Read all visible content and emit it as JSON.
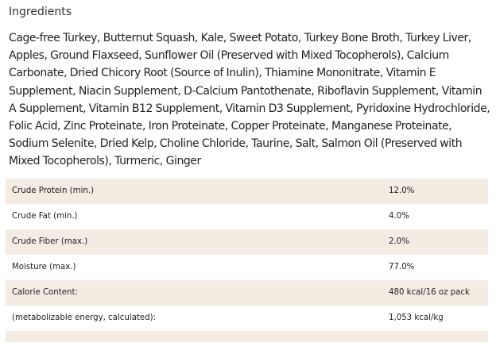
{
  "ingredients": {
    "heading": "Ingredients",
    "text": "Cage-free Turkey, Butternut Squash, Kale, Sweet Potato, Turkey Bone Broth, Turkey Liver, Apples, Ground Flaxseed, Sunflower Oil (Preserved with Mixed Tocopherols), Calcium Carbonate, Dried Chicory Root (Source of Inulin), Thiamine Mononitrate, Vitamin E Supplement, Niacin Supplement, D-Calcium Pantothenate, Riboflavin Supplement, Vitamin A Supplement, Vitamin B12 Supplement, Vitamin D3 Supplement, Pyridoxine Hydrochloride, Folic Acid, Zinc Proteinate, Iron Proteinate, Copper Proteinate, Manganese Proteinate, Sodium Selenite, Dried Kelp, Choline Chloride, Taurine, Salt, Salmon Oil (Preserved with Mixed Tocopherols), Turmeric, Ginger"
  },
  "analysis": {
    "rows": [
      {
        "label": "Crude Protein (min.)",
        "value": "12.0%"
      },
      {
        "label": "Crude Fat (min.)",
        "value": "4.0%"
      },
      {
        "label": "Crude Fiber (max.)",
        "value": "2.0%"
      },
      {
        "label": "Moisture (max.)",
        "value": "77.0%"
      },
      {
        "label": "Calorie Content:",
        "value": "480 kcal/16 oz pack"
      },
      {
        "label": "(metabolizable energy, calculated):",
        "value": "1,053 kcal/kg"
      }
    ]
  },
  "colors": {
    "shaded_row": "#f4ebe3",
    "text": "#222222"
  }
}
